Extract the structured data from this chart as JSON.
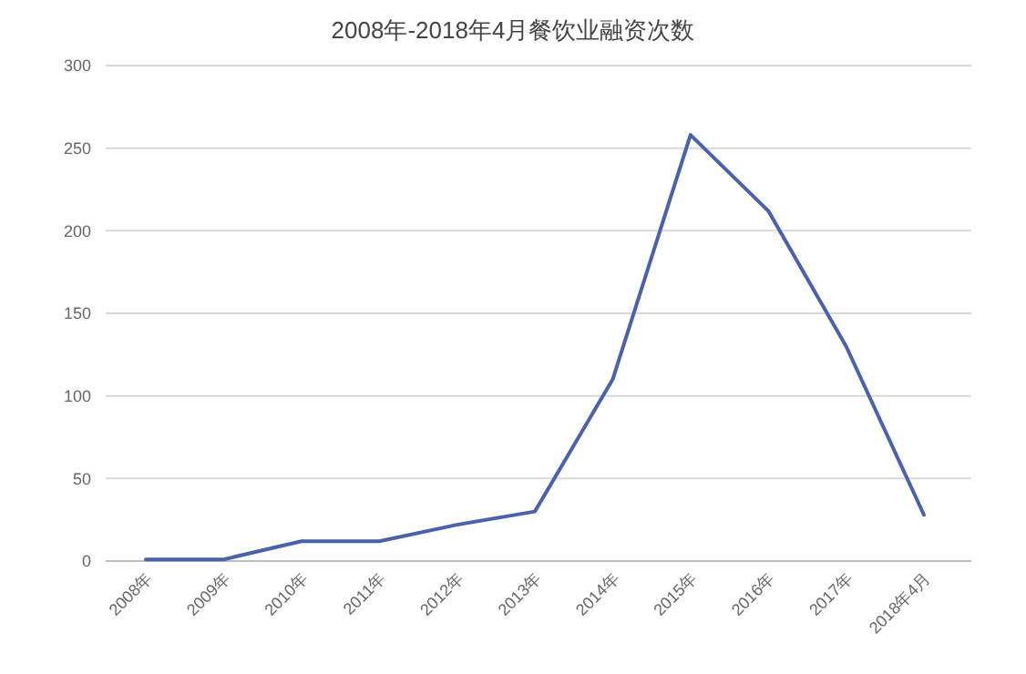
{
  "chart_data": {
    "type": "line",
    "title": "2008年-2018年4月餐饮业融资次数",
    "categories": [
      "2008年",
      "2009年",
      "2010年",
      "2011年",
      "2012年",
      "2013年",
      "2014年",
      "2015年",
      "2016年",
      "2017年",
      "2018年4月"
    ],
    "series": [
      {
        "color": "#4a62ab",
        "values": [
          1,
          1,
          12,
          12,
          22,
          30,
          110,
          258,
          212,
          130,
          28
        ]
      }
    ],
    "ylim": [
      0,
      300
    ],
    "yticks": [
      0,
      50,
      100,
      150,
      200,
      250,
      300
    ],
    "grid": "y",
    "marker": "none",
    "line_style": "solid"
  }
}
